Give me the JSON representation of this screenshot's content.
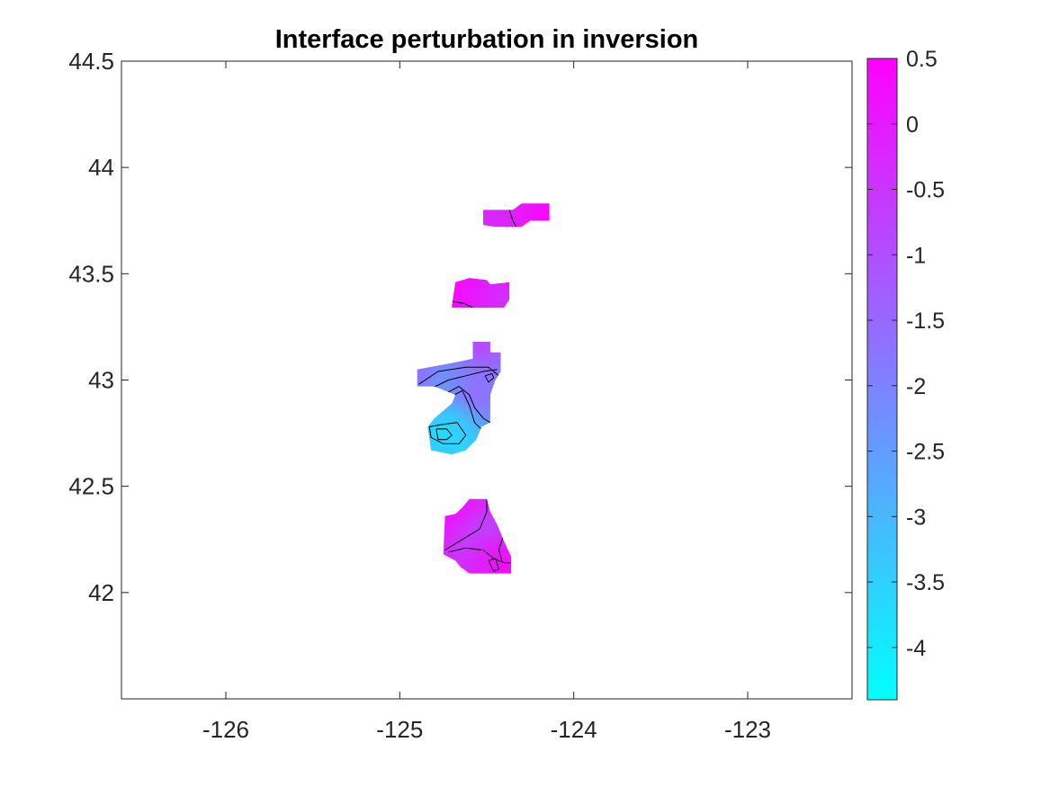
{
  "chart_data": {
    "type": "heatmap",
    "title": "Interface perturbation in inversion",
    "xlabel": "",
    "ylabel": "",
    "xlim": [
      -126.6,
      -122.4
    ],
    "ylim": [
      41.5,
      44.5
    ],
    "xticks": [
      -126,
      -125,
      -124,
      -123
    ],
    "xtick_labels": [
      "-126",
      "-125",
      "-124",
      "-123"
    ],
    "yticks": [
      42,
      42.5,
      43,
      43.5,
      44,
      44.5
    ],
    "ytick_labels": [
      "42",
      "42.5",
      "43",
      "43.5",
      "44",
      "44.5"
    ],
    "grid": false,
    "colormap": "cool",
    "colorbar": {
      "range": [
        -4.4,
        0.5
      ],
      "ticks": [
        0.5,
        0,
        -0.5,
        -1,
        -1.5,
        -2,
        -2.5,
        -3,
        -3.5,
        -4
      ],
      "tick_labels": [
        "0.5",
        "0",
        "-0.5",
        "-1",
        "-1.5",
        "-2",
        "-2.5",
        "-3",
        "-3.5",
        "-4"
      ],
      "color_low": "#00ffff",
      "color_high": "#ff00ff"
    },
    "patches": [
      {
        "name": "patch-1",
        "center": [
          -124.3,
          43.77
        ],
        "outline_lonlat": [
          [
            -124.52,
            43.73
          ],
          [
            -124.52,
            43.8
          ],
          [
            -124.35,
            43.8
          ],
          [
            -124.3,
            43.83
          ],
          [
            -124.14,
            43.83
          ],
          [
            -124.14,
            43.75
          ],
          [
            -124.25,
            43.75
          ],
          [
            -124.3,
            43.72
          ],
          [
            -124.45,
            43.72
          ]
        ],
        "stops": [
          [
            -124.52,
            43.77,
            -0.3
          ],
          [
            -124.3,
            43.77,
            -0.2
          ],
          [
            -124.14,
            43.77,
            0.4
          ]
        ],
        "contours": [
          [
            [
              -124.37,
              43.8
            ],
            [
              -124.35,
              43.75
            ],
            [
              -124.33,
              43.72
            ]
          ]
        ]
      },
      {
        "name": "patch-2",
        "center": [
          -124.6,
          43.4
        ],
        "outline_lonlat": [
          [
            -124.7,
            43.35
          ],
          [
            -124.68,
            43.46
          ],
          [
            -124.6,
            43.48
          ],
          [
            -124.5,
            43.47
          ],
          [
            -124.48,
            43.45
          ],
          [
            -124.37,
            43.46
          ],
          [
            -124.37,
            43.38
          ],
          [
            -124.4,
            43.34
          ],
          [
            -124.7,
            43.34
          ]
        ],
        "stops": [
          [
            -124.7,
            43.4,
            0.3
          ],
          [
            -124.55,
            43.45,
            0.2
          ],
          [
            -124.4,
            43.36,
            -0.4
          ]
        ],
        "contours": [
          [
            [
              -124.7,
              43.37
            ],
            [
              -124.63,
              43.36
            ],
            [
              -124.58,
              43.34
            ]
          ]
        ]
      },
      {
        "name": "patch-3",
        "center": [
          -124.6,
          42.95
        ],
        "outline_lonlat": [
          [
            -124.9,
            42.97
          ],
          [
            -124.9,
            43.05
          ],
          [
            -124.7,
            43.08
          ],
          [
            -124.58,
            43.1
          ],
          [
            -124.58,
            43.18
          ],
          [
            -124.48,
            43.18
          ],
          [
            -124.48,
            43.13
          ],
          [
            -124.42,
            43.13
          ],
          [
            -124.42,
            43.04
          ],
          [
            -124.45,
            43.0
          ],
          [
            -124.48,
            42.93
          ],
          [
            -124.48,
            42.8
          ],
          [
            -124.53,
            42.78
          ],
          [
            -124.56,
            42.72
          ],
          [
            -124.62,
            42.67
          ],
          [
            -124.7,
            42.65
          ],
          [
            -124.82,
            42.67
          ],
          [
            -124.84,
            42.78
          ],
          [
            -124.8,
            42.82
          ],
          [
            -124.7,
            42.89
          ],
          [
            -124.68,
            42.93
          ],
          [
            -124.8,
            42.97
          ]
        ],
        "stops": [
          [
            -124.53,
            43.15,
            -0.8
          ],
          [
            -124.85,
            43.02,
            -1.3
          ],
          [
            -124.72,
            42.96,
            -2.6
          ],
          [
            -124.55,
            42.95,
            -1.6
          ],
          [
            -124.76,
            42.74,
            -3.9
          ],
          [
            -124.66,
            42.7,
            -3.6
          ]
        ],
        "contours": [
          [
            [
              -124.89,
              42.98
            ],
            [
              -124.78,
              43.04
            ],
            [
              -124.62,
              43.06
            ],
            [
              -124.49,
              43.06
            ],
            [
              -124.43,
              43.02
            ]
          ],
          [
            [
              -124.82,
              42.96
            ],
            [
              -124.72,
              43.0
            ],
            [
              -124.62,
              43.02
            ],
            [
              -124.52,
              43.04
            ],
            [
              -124.44,
              43.05
            ]
          ],
          [
            [
              -124.75,
              42.93
            ],
            [
              -124.66,
              42.97
            ],
            [
              -124.6,
              42.93
            ],
            [
              -124.57,
              42.87
            ],
            [
              -124.52,
              42.82
            ],
            [
              -124.48,
              42.8
            ]
          ],
          [
            [
              -124.71,
              42.92
            ],
            [
              -124.64,
              42.95
            ],
            [
              -124.6,
              42.88
            ],
            [
              -124.57,
              42.8
            ],
            [
              -124.52,
              42.76
            ]
          ],
          [
            [
              -124.83,
              42.78
            ],
            [
              -124.76,
              42.79
            ],
            [
              -124.67,
              42.8
            ],
            [
              -124.62,
              42.74
            ],
            [
              -124.66,
              42.7
            ],
            [
              -124.75,
              42.7
            ],
            [
              -124.82,
              42.73
            ],
            [
              -124.83,
              42.78
            ]
          ],
          [
            [
              -124.79,
              42.77
            ],
            [
              -124.73,
              42.77
            ],
            [
              -124.7,
              42.74
            ],
            [
              -124.73,
              42.72
            ],
            [
              -124.78,
              42.72
            ],
            [
              -124.79,
              42.77
            ]
          ],
          [
            [
              -124.51,
              43.02
            ],
            [
              -124.47,
              43.03
            ],
            [
              -124.46,
              43.01
            ],
            [
              -124.49,
              42.99
            ],
            [
              -124.51,
              43.02
            ]
          ]
        ]
      },
      {
        "name": "patch-4",
        "center": [
          -124.55,
          42.27
        ],
        "outline_lonlat": [
          [
            -124.74,
            42.36
          ],
          [
            -124.68,
            42.37
          ],
          [
            -124.64,
            42.4
          ],
          [
            -124.6,
            42.44
          ],
          [
            -124.5,
            42.44
          ],
          [
            -124.48,
            42.38
          ],
          [
            -124.44,
            42.32
          ],
          [
            -124.4,
            42.24
          ],
          [
            -124.36,
            42.17
          ],
          [
            -124.36,
            42.09
          ],
          [
            -124.6,
            42.09
          ],
          [
            -124.65,
            42.12
          ],
          [
            -124.68,
            42.15
          ],
          [
            -124.75,
            42.18
          ]
        ],
        "stops": [
          [
            -124.64,
            42.34,
            0.4
          ],
          [
            -124.6,
            42.2,
            -0.6
          ],
          [
            -124.48,
            42.28,
            -0.9
          ],
          [
            -124.42,
            42.13,
            0.3
          ]
        ],
        "contours": [
          [
            [
              -124.74,
              42.2
            ],
            [
              -124.64,
              42.25
            ],
            [
              -124.54,
              42.3
            ],
            [
              -124.5,
              42.38
            ],
            [
              -124.5,
              42.44
            ]
          ],
          [
            [
              -124.72,
              42.19
            ],
            [
              -124.62,
              42.21
            ],
            [
              -124.52,
              42.2
            ],
            [
              -124.46,
              42.16
            ],
            [
              -124.4,
              42.14
            ],
            [
              -124.36,
              42.14
            ]
          ],
          [
            [
              -124.49,
              42.15
            ],
            [
              -124.46,
              42.1
            ],
            [
              -124.43,
              42.11
            ],
            [
              -124.45,
              42.16
            ],
            [
              -124.49,
              42.15
            ]
          ],
          [
            [
              -124.4,
              42.28
            ],
            [
              -124.43,
              42.2
            ],
            [
              -124.41,
              42.14
            ]
          ]
        ]
      }
    ]
  }
}
